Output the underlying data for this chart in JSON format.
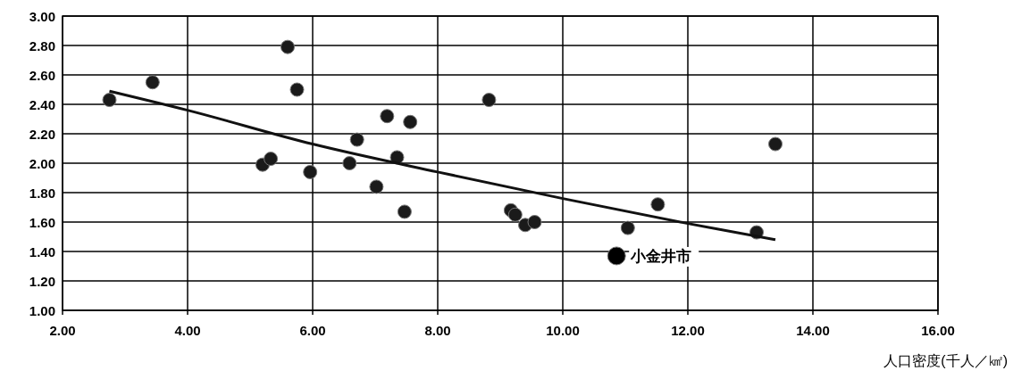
{
  "chart_data": {
    "type": "scatter",
    "xlabel": "人口密度(千人／㎢)",
    "xlim": [
      2,
      16
    ],
    "xticks": [
      {
        "value": 2,
        "label": "2.00"
      },
      {
        "value": 4,
        "label": "4.00"
      },
      {
        "value": 6,
        "label": "6.00"
      },
      {
        "value": 8,
        "label": "8.00"
      },
      {
        "value": 10,
        "label": "10.00"
      },
      {
        "value": 12,
        "label": "12.00"
      },
      {
        "value": 14,
        "label": "14.00"
      },
      {
        "value": 16,
        "label": "16.00"
      }
    ],
    "ylim": [
      1,
      3
    ],
    "yticks": [
      {
        "value": 1,
        "label": "1.00"
      },
      {
        "value": 1.2,
        "label": "1.20"
      },
      {
        "value": 1.4,
        "label": "1.40"
      },
      {
        "value": 1.6,
        "label": "1.60"
      },
      {
        "value": 1.8,
        "label": "1.80"
      },
      {
        "value": 2,
        "label": "2.00"
      },
      {
        "value": 2.2,
        "label": "2.20"
      },
      {
        "value": 2.4,
        "label": "2.40"
      },
      {
        "value": 2.6,
        "label": "2.60"
      },
      {
        "value": 2.8,
        "label": "2.80"
      },
      {
        "value": 3,
        "label": "3.00"
      }
    ],
    "grid": true,
    "marker": "circle",
    "series": [
      {
        "color": "#1a1a1a",
        "x": [
          2.75,
          3.44,
          5.6,
          5.75,
          5.2,
          5.33,
          5.96,
          6.59,
          6.71,
          7.02,
          7.19,
          7.35,
          7.56,
          7.47,
          8.82,
          9.17,
          9.24,
          9.4,
          9.55,
          11.04,
          11.52,
          13.1,
          13.4
        ],
        "values": [
          2.43,
          2.55,
          2.79,
          2.5,
          1.99,
          2.03,
          1.94,
          2.0,
          2.16,
          1.84,
          2.32,
          2.04,
          2.28,
          1.67,
          2.43,
          1.68,
          1.65,
          1.58,
          1.6,
          1.56,
          1.72,
          1.53,
          2.13
        ]
      },
      {
        "color": "#000000",
        "x": [
          10.86
        ],
        "values": [
          1.37
        ]
      },
      {
        "type": "line",
        "marker": "none",
        "color": "#111111",
        "x": [
          2.75,
          4,
          6,
          8,
          10,
          12,
          13.4
        ],
        "values": [
          2.49,
          2.36,
          2.13,
          1.94,
          1.76,
          1.59,
          1.48
        ]
      }
    ],
    "annotations": [
      {
        "text": "小金井市",
        "x": 10.86,
        "y": 1.37
      }
    ]
  }
}
